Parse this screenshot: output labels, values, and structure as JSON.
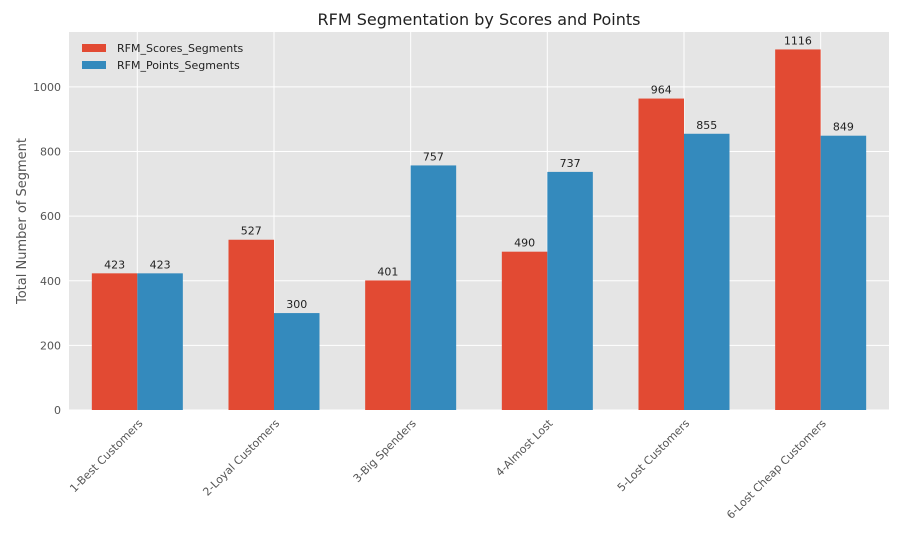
{
  "chart_data": {
    "type": "bar",
    "title": "RFM Segmentation by Scores and Points",
    "xlabel": "",
    "ylabel": "Total Number of Segment",
    "categories": [
      "1-Best Customers",
      "2-Loyal Customers",
      "3-Big Spenders",
      "4-Almost Lost",
      "5-Lost Customers",
      "6-Lost Cheap Customers"
    ],
    "series": [
      {
        "name": "RFM_Scores_Segments",
        "color": "#E24A33",
        "values": [
          423,
          527,
          401,
          490,
          964,
          1116
        ]
      },
      {
        "name": "RFM_Points_Segments",
        "color": "#348ABD",
        "values": [
          423,
          300,
          757,
          737,
          855,
          849
        ]
      }
    ],
    "ylim": [
      0,
      1170
    ],
    "yticks": [
      0,
      200,
      400,
      600,
      800,
      1000
    ],
    "grid": true,
    "legend_position": "top-left",
    "data_labels": true
  }
}
